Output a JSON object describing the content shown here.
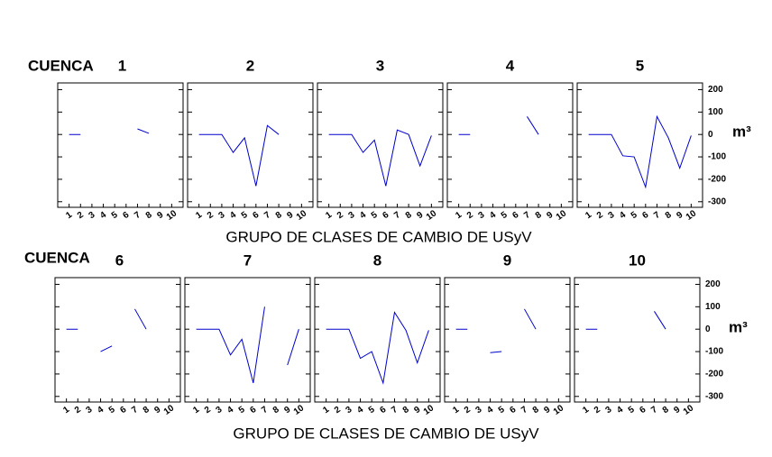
{
  "row_label": "CUENCA",
  "xlabel": "GRUPO DE CLASES DE CAMBIO DE USyV",
  "ylabel": "m³",
  "chart_data": [
    {
      "type": "line",
      "title": "1",
      "x": [
        1,
        2,
        3,
        4,
        5,
        6,
        7,
        8,
        9,
        10
      ],
      "values": [
        0,
        0,
        null,
        null,
        null,
        null,
        25,
        5,
        null,
        null
      ],
      "color": "#0000cc",
      "xlim": [
        0,
        11
      ],
      "ylim": [
        -325,
        230
      ],
      "xticks": [
        1,
        2,
        3,
        4,
        5,
        6,
        7,
        8,
        9,
        10
      ],
      "yticks": [
        200,
        100,
        0,
        -100,
        -200,
        -300
      ]
    },
    {
      "type": "line",
      "title": "2",
      "x": [
        1,
        2,
        3,
        4,
        5,
        6,
        7,
        8,
        9,
        10
      ],
      "values": [
        0,
        0,
        0,
        -80,
        -15,
        -230,
        40,
        0,
        null,
        null
      ],
      "color": "#0000cc",
      "xlim": [
        0,
        11
      ],
      "ylim": [
        -325,
        230
      ],
      "xticks": [
        1,
        2,
        3,
        4,
        5,
        6,
        7,
        8,
        9,
        10
      ],
      "yticks": [
        200,
        100,
        0,
        -100,
        -200,
        -300
      ]
    },
    {
      "type": "line",
      "title": "3",
      "x": [
        1,
        2,
        3,
        4,
        5,
        6,
        7,
        8,
        9,
        10
      ],
      "values": [
        0,
        0,
        0,
        -80,
        -25,
        -230,
        20,
        0,
        -140,
        -5
      ],
      "color": "#0000cc",
      "xlim": [
        0,
        11
      ],
      "ylim": [
        -325,
        230
      ],
      "xticks": [
        1,
        2,
        3,
        4,
        5,
        6,
        7,
        8,
        9,
        10
      ],
      "yticks": [
        200,
        100,
        0,
        -100,
        -200,
        -300
      ]
    },
    {
      "type": "line",
      "title": "4",
      "x": [
        1,
        2,
        3,
        4,
        5,
        6,
        7,
        8,
        9,
        10
      ],
      "values": [
        0,
        0,
        null,
        null,
        null,
        null,
        80,
        0,
        null,
        null
      ],
      "color": "#0000cc",
      "xlim": [
        0,
        11
      ],
      "ylim": [
        -325,
        230
      ],
      "xticks": [
        1,
        2,
        3,
        4,
        5,
        6,
        7,
        8,
        9,
        10
      ],
      "yticks": [
        200,
        100,
        0,
        -100,
        -200,
        -300
      ]
    },
    {
      "type": "line",
      "title": "5",
      "x": [
        1,
        2,
        3,
        4,
        5,
        6,
        7,
        8,
        9,
        10
      ],
      "values": [
        0,
        0,
        0,
        -95,
        -100,
        -235,
        80,
        -15,
        -150,
        -5
      ],
      "color": "#0000cc",
      "xlim": [
        0,
        11
      ],
      "ylim": [
        -325,
        230
      ],
      "xticks": [
        1,
        2,
        3,
        4,
        5,
        6,
        7,
        8,
        9,
        10
      ],
      "yticks": [
        200,
        100,
        0,
        -100,
        -200,
        -300
      ]
    },
    {
      "type": "line",
      "title": "6",
      "x": [
        1,
        2,
        3,
        4,
        5,
        6,
        7,
        8,
        9,
        10
      ],
      "values": [
        0,
        0,
        null,
        -100,
        -75,
        null,
        90,
        0,
        null,
        null
      ],
      "color": "#0000cc",
      "xlim": [
        0,
        11
      ],
      "ylim": [
        -325,
        230
      ],
      "xticks": [
        1,
        2,
        3,
        4,
        5,
        6,
        7,
        8,
        9,
        10
      ],
      "yticks": [
        200,
        100,
        0,
        -100,
        -200,
        -300
      ]
    },
    {
      "type": "line",
      "title": "7",
      "x": [
        1,
        2,
        3,
        4,
        5,
        6,
        7,
        8,
        9,
        10
      ],
      "values": [
        0,
        0,
        0,
        -115,
        -45,
        -240,
        100,
        null,
        -160,
        0
      ],
      "color": "#0000cc",
      "xlim": [
        0,
        11
      ],
      "ylim": [
        -325,
        230
      ],
      "xticks": [
        1,
        2,
        3,
        4,
        5,
        6,
        7,
        8,
        9,
        10
      ],
      "yticks": [
        200,
        100,
        0,
        -100,
        -200,
        -300
      ]
    },
    {
      "type": "line",
      "title": "8",
      "x": [
        1,
        2,
        3,
        4,
        5,
        6,
        7,
        8,
        9,
        10
      ],
      "values": [
        0,
        0,
        0,
        -130,
        -100,
        -240,
        75,
        -5,
        -150,
        -5
      ],
      "color": "#0000cc",
      "xlim": [
        0,
        11
      ],
      "ylim": [
        -325,
        230
      ],
      "xticks": [
        1,
        2,
        3,
        4,
        5,
        6,
        7,
        8,
        9,
        10
      ],
      "yticks": [
        200,
        100,
        0,
        -100,
        -200,
        -300
      ]
    },
    {
      "type": "line",
      "title": "9",
      "x": [
        1,
        2,
        3,
        4,
        5,
        6,
        7,
        8,
        9,
        10
      ],
      "values": [
        0,
        0,
        null,
        -105,
        -100,
        null,
        90,
        0,
        null,
        null
      ],
      "color": "#0000cc",
      "xlim": [
        0,
        11
      ],
      "ylim": [
        -325,
        230
      ],
      "xticks": [
        1,
        2,
        3,
        4,
        5,
        6,
        7,
        8,
        9,
        10
      ],
      "yticks": [
        200,
        100,
        0,
        -100,
        -200,
        -300
      ]
    },
    {
      "type": "line",
      "title": "10",
      "x": [
        1,
        2,
        3,
        4,
        5,
        6,
        7,
        8,
        9,
        10
      ],
      "values": [
        0,
        0,
        null,
        null,
        null,
        null,
        80,
        0,
        null,
        null
      ],
      "color": "#0000cc",
      "xlim": [
        0,
        11
      ],
      "ylim": [
        -325,
        230
      ],
      "xticks": [
        1,
        2,
        3,
        4,
        5,
        6,
        7,
        8,
        9,
        10
      ],
      "yticks": [
        200,
        100,
        0,
        -100,
        -200,
        -300
      ]
    }
  ]
}
